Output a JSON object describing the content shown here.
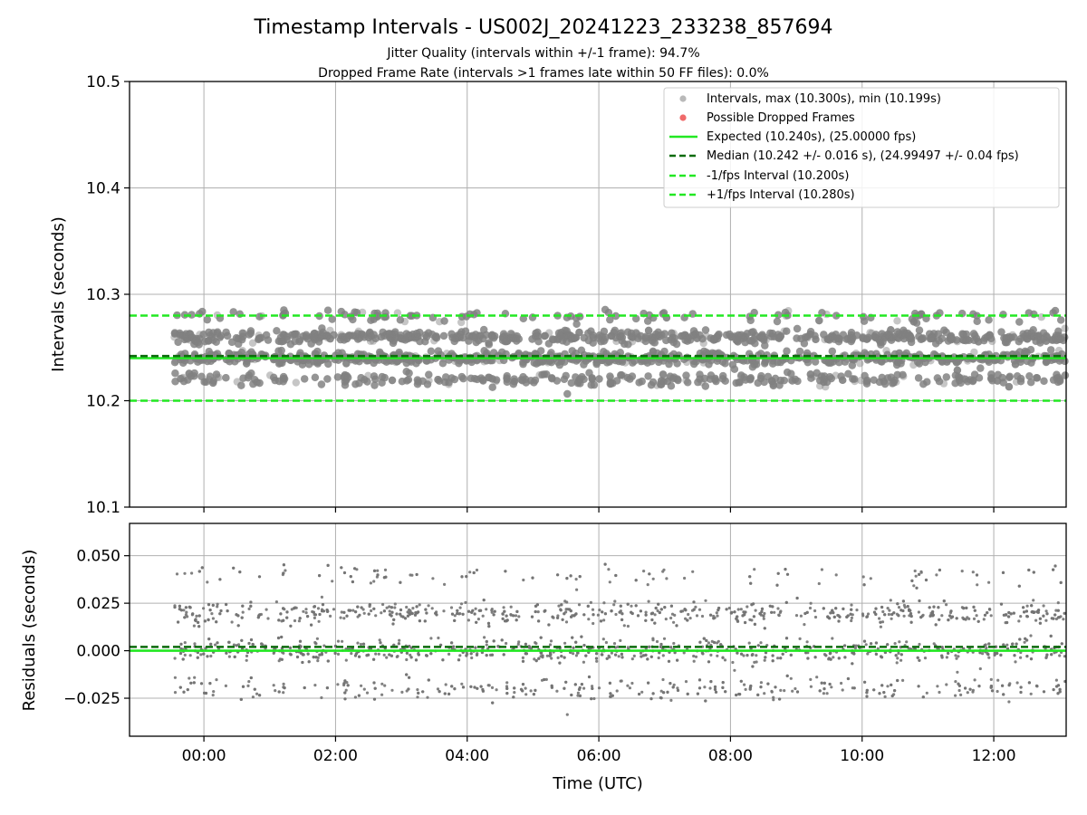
{
  "chart_data": [
    {
      "type": "scatter",
      "title": "Timestamp Intervals - US002J_20241223_233238_857694",
      "subtitle_lines": [
        "Jitter Quality (intervals within +/-1 frame): 94.7%",
        "Dropped Frame Rate (intervals >1 frames late within 50 FF files): 0.0%"
      ],
      "ylabel": "Intervals (seconds)",
      "xlim_hours": [
        -1.13,
        13.1
      ],
      "ylim": [
        10.1,
        10.5
      ],
      "yticks": [
        10.1,
        10.2,
        10.3,
        10.4,
        10.5
      ],
      "ytick_labels": [
        "10.1",
        "10.2",
        "10.3",
        "10.4",
        "10.5"
      ],
      "grid": true,
      "legend_position": "top-right",
      "series": [
        {
          "name": "Intervals, max (10.300s), min (10.199s)",
          "kind": "scatter",
          "color": "#808080",
          "x_range_hours": [
            -0.45,
            13.1
          ],
          "levels": [
            10.22,
            10.24,
            10.26,
            10.28
          ],
          "level_weights": [
            0.19,
            0.38,
            0.36,
            0.07
          ],
          "spread": 0.003,
          "count": 4700
        },
        {
          "name": "Possible Dropped Frames",
          "kind": "scatter",
          "color": "#f06a6a",
          "values": []
        },
        {
          "name": "Expected (10.240s), (25.00000 fps)",
          "kind": "hline",
          "value": 10.24,
          "color": "#22e822",
          "style": "solid"
        },
        {
          "name": "Median (10.242 +/- 0.016 s), (24.99497 +/- 0.04 fps)",
          "kind": "hline",
          "value": 10.242,
          "color": "#0d6b0d",
          "style": "dashed"
        },
        {
          "name": "-1/fps Interval (10.200s)",
          "kind": "hline",
          "value": 10.2,
          "color": "#22e822",
          "style": "dashed"
        },
        {
          "name": "+1/fps Interval (10.280s)",
          "kind": "hline",
          "value": 10.28,
          "color": "#22e822",
          "style": "dashed"
        }
      ]
    },
    {
      "type": "scatter",
      "ylabel": "Residuals (seconds)",
      "xlabel": "Time (UTC)",
      "xlim_hours": [
        -1.13,
        13.1
      ],
      "ylim": [
        -0.045,
        0.067
      ],
      "yticks": [
        -0.025,
        0.0,
        0.025,
        0.05
      ],
      "ytick_labels": [
        "−0.025",
        "0.000",
        "0.025",
        "0.050"
      ],
      "xticks_hours": [
        0,
        2,
        4,
        6,
        8,
        10,
        12
      ],
      "xtick_labels": [
        "00:00",
        "02:00",
        "04:00",
        "06:00",
        "08:00",
        "10:00",
        "12:00"
      ],
      "grid": true,
      "series": [
        {
          "name": "Residuals",
          "kind": "scatter",
          "color": "#737373",
          "x_range_hours": [
            -0.45,
            13.1
          ],
          "levels": [
            -0.02,
            0.0,
            0.02,
            0.04
          ],
          "level_weights": [
            0.19,
            0.38,
            0.36,
            0.07
          ],
          "spread": 0.003,
          "count": 2300
        },
        {
          "name": "Zero",
          "kind": "hline",
          "value": 0.0,
          "color": "#22e822",
          "style": "solid"
        },
        {
          "name": "Median",
          "kind": "hline",
          "value": 0.002,
          "color": "#0d6b0d",
          "style": "dashed"
        }
      ]
    }
  ]
}
